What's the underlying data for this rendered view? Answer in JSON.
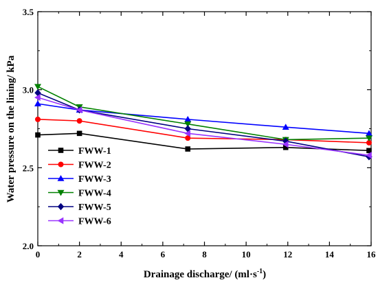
{
  "chart_data": {
    "type": "line",
    "title": "",
    "xlabel": "Drainage discharge/ (ml·s",
    "xlabel_superscript": "-1",
    "xlabel_suffix": ")",
    "ylabel": "Water pressure on the lining/ kPa",
    "xlim": [
      0,
      16
    ],
    "ylim": [
      2.0,
      3.5
    ],
    "xticks": [
      "0",
      "2",
      "4",
      "6",
      "8",
      "10",
      "12",
      "14",
      "16"
    ],
    "yticks": [
      "2.0",
      "2.5",
      "3.0",
      "3.5"
    ],
    "grid": false,
    "legend_position": "bottom-left",
    "series": [
      {
        "name": "FWW-1",
        "color": "#000000",
        "marker": "square",
        "x": [
          0,
          2,
          7.2,
          11.9,
          15.9
        ],
        "y": [
          2.71,
          2.72,
          2.62,
          2.63,
          2.61
        ]
      },
      {
        "name": "FWW-2",
        "color": "#ff0000",
        "marker": "circle",
        "x": [
          0,
          2,
          7.2,
          11.9,
          15.9
        ],
        "y": [
          2.81,
          2.8,
          2.69,
          2.68,
          2.66
        ]
      },
      {
        "name": "FWW-3",
        "color": "#0000ff",
        "marker": "triangle-up",
        "x": [
          0,
          2,
          7.2,
          11.9,
          15.9
        ],
        "y": [
          2.91,
          2.87,
          2.81,
          2.76,
          2.72
        ]
      },
      {
        "name": "FWW-4",
        "color": "#008000",
        "marker": "triangle-down",
        "x": [
          0,
          2,
          7.2,
          11.9,
          15.9
        ],
        "y": [
          3.02,
          2.89,
          2.78,
          2.68,
          2.69
        ]
      },
      {
        "name": "FWW-5",
        "color": "#000080",
        "marker": "diamond",
        "x": [
          0,
          2,
          7.2,
          11.9,
          15.9
        ],
        "y": [
          2.98,
          2.87,
          2.75,
          2.67,
          2.57
        ]
      },
      {
        "name": "FWW-6",
        "color": "#9933ff",
        "marker": "triangle-left",
        "x": [
          0,
          2,
          7.2,
          11.9,
          15.9
        ],
        "y": [
          2.95,
          2.87,
          2.72,
          2.65,
          2.58
        ]
      }
    ]
  }
}
